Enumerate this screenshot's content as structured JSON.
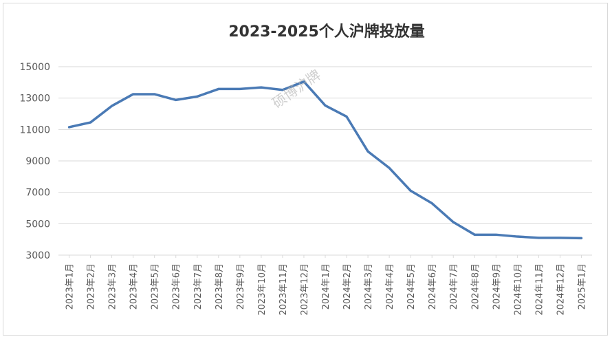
{
  "chart_data": {
    "type": "line",
    "title": "2023-2025个人沪牌投放量",
    "watermark": "硕博沪牌",
    "xlabel": "",
    "ylabel": "",
    "ylim": [
      3000,
      15000
    ],
    "yticks": [
      "3000",
      "5000",
      "7000",
      "9000",
      "11000",
      "13000",
      "15000"
    ],
    "grid": true,
    "legend": "none",
    "line_color": "#4a7ab5",
    "grid_color": "#d9d9d9",
    "categories": [
      "2023年1月",
      "2023年2月",
      "2023年3月",
      "2023年4月",
      "2023年5月",
      "2023年6月",
      "2023年7月",
      "2023年8月",
      "2023年9月",
      "2023年10月",
      "2023年11月",
      "2023年12月",
      "2024年1月",
      "2024年2月",
      "2024年3月",
      "2024年4月",
      "2024年5月",
      "2024年6月",
      "2024年7月",
      "2024年8月",
      "2024年9月",
      "2024年10月",
      "2024年11月",
      "2024年12月",
      "2025年1月"
    ],
    "values": [
      11150,
      11450,
      12500,
      13250,
      13250,
      12880,
      13100,
      13580,
      13580,
      13680,
      13520,
      14050,
      12530,
      11820,
      9600,
      8550,
      7100,
      6300,
      5100,
      4300,
      4300,
      4180,
      4100,
      4100,
      4080
    ]
  }
}
